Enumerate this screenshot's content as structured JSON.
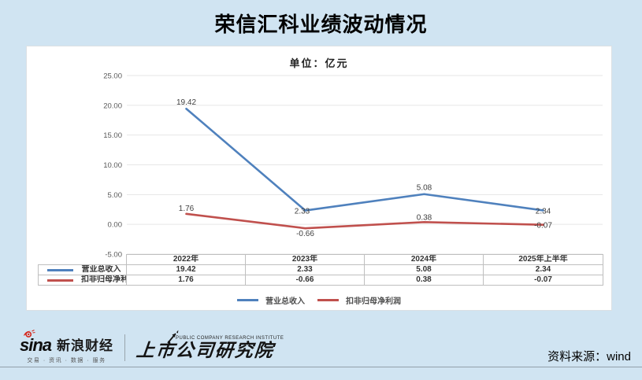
{
  "page": {
    "title": "荣信汇科业绩波动情况"
  },
  "chart_data": {
    "type": "line",
    "title": "荣信汇科业绩波动情况",
    "unit_label": "单位：亿元",
    "categories": [
      "2022年",
      "2023年",
      "2024年",
      "2025年上半年"
    ],
    "series": [
      {
        "name": "营业总收入",
        "color": "#4f81bd",
        "values": [
          19.42,
          2.33,
          5.08,
          2.34
        ]
      },
      {
        "name": "扣非归母净利润",
        "color": "#c0504d",
        "values": [
          1.76,
          -0.66,
          0.38,
          -0.07
        ]
      }
    ],
    "ylim": [
      -5,
      25
    ],
    "yticks": [
      25,
      20,
      15,
      10,
      5,
      0,
      -5
    ],
    "grid": true,
    "legend_position": "bottom",
    "data_table_shown": true
  },
  "footer": {
    "sina_wordmark": "sina",
    "sina_brand": "新浪财经",
    "sina_tagline": "交易 · 资讯 · 数据 · 服务",
    "institute_caption": "PUBLIC COMPANY RESEARCH INSTITUTE",
    "institute_name": "上市公司研究院",
    "source_note": "资料来源：wind"
  }
}
